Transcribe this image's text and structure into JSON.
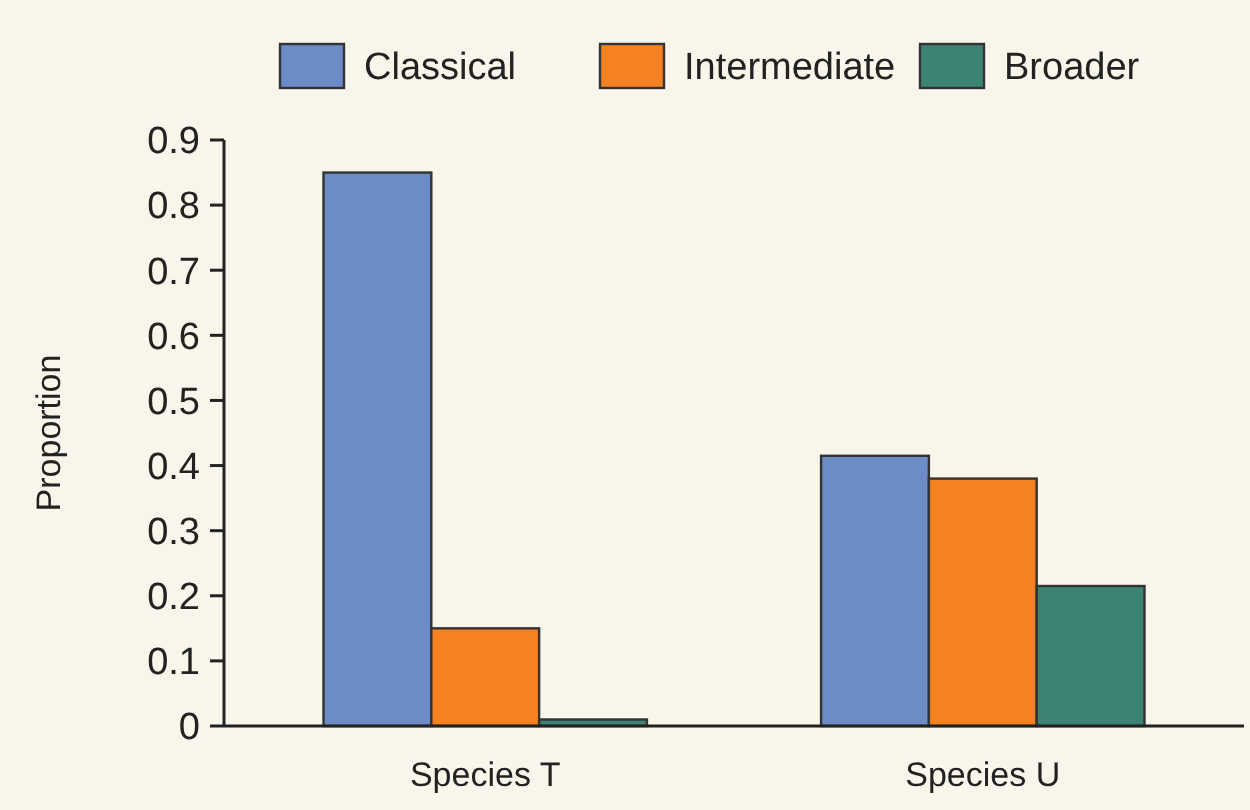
{
  "chart_data": {
    "type": "bar",
    "ylabel": "Proportion",
    "categories": [
      "Species T",
      "Species U"
    ],
    "series": [
      {
        "name": "Classical",
        "color": "#6b8cc7",
        "values": [
          0.85,
          0.415
        ]
      },
      {
        "name": "Intermediate",
        "color": "#f58220",
        "values": [
          0.15,
          0.38
        ]
      },
      {
        "name": "Broader",
        "color": "#3c8374",
        "values": [
          0.01,
          0.215
        ]
      }
    ],
    "ylim": [
      0,
      0.9
    ],
    "yticks": [
      0,
      0.1,
      0.2,
      0.3,
      0.4,
      0.5,
      0.6,
      0.7,
      0.8,
      0.9
    ],
    "legend": "top",
    "grid": false
  }
}
